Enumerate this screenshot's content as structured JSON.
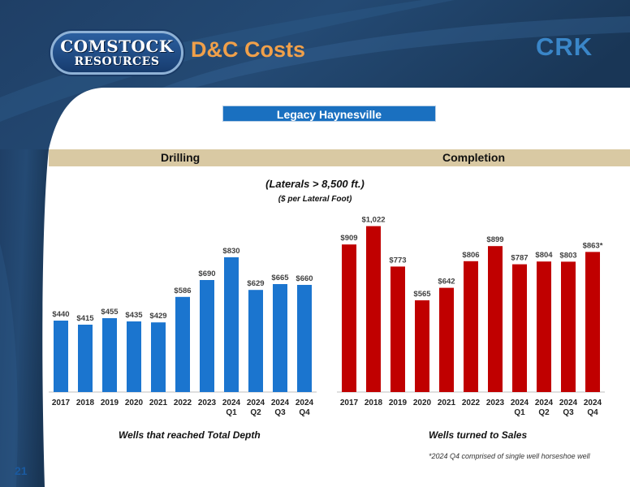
{
  "header": {
    "title": "D&C Costs",
    "logo_line1": "COMSTOCK",
    "logo_line2": "RESOURCES",
    "ticker": "CRK"
  },
  "banner": "Legacy Haynesville",
  "section_labels": {
    "left": "Drilling",
    "right": "Completion"
  },
  "subtitle": "(Laterals > 8,500 ft.)",
  "unit_label": "($ per Lateral Foot)",
  "captions": {
    "left": "Wells that reached Total Depth",
    "right": "Wells turned to Sales"
  },
  "footnote": "*2024 Q4 comprised of single well horseshoe well",
  "page_number": "21",
  "colors": {
    "drilling": "#1b75cf",
    "completion": "#c00000",
    "accent_title": "#f0a04a",
    "band": "#d9c9a3"
  },
  "chart_data": [
    {
      "type": "bar",
      "categories": [
        [
          "2017"
        ],
        [
          "2018"
        ],
        [
          "2019"
        ],
        [
          "2020"
        ],
        [
          "2021"
        ],
        [
          "2022"
        ],
        [
          "2023"
        ],
        [
          "2024",
          "Q1"
        ],
        [
          "2024",
          "Q2"
        ],
        [
          "2024",
          "Q3"
        ],
        [
          "2024",
          "Q4"
        ]
      ],
      "values": [
        440,
        415,
        455,
        435,
        429,
        586,
        690,
        830,
        629,
        665,
        660
      ],
      "data_labels": [
        "$440",
        "$415",
        "$455",
        "$435",
        "$429",
        "$586",
        "$690",
        "$830",
        "$629",
        "$665",
        "$660"
      ],
      "title": "Drilling",
      "ylim": [
        0,
        1100
      ]
    },
    {
      "type": "bar",
      "categories": [
        [
          "2017"
        ],
        [
          "2018"
        ],
        [
          "2019"
        ],
        [
          "2020"
        ],
        [
          "2021"
        ],
        [
          "2022"
        ],
        [
          "2023"
        ],
        [
          "2024",
          "Q1"
        ],
        [
          "2024",
          "Q2"
        ],
        [
          "2024",
          "Q3"
        ],
        [
          "2024",
          "Q4"
        ]
      ],
      "values": [
        909,
        1022,
        773,
        565,
        642,
        806,
        899,
        787,
        804,
        803,
        863
      ],
      "data_labels": [
        "$909",
        "$1,022",
        "$773",
        "$565",
        "$642",
        "$806",
        "$899",
        "$787",
        "$804",
        "$803",
        "$863*"
      ],
      "title": "Completion",
      "ylim": [
        0,
        1100
      ]
    }
  ]
}
